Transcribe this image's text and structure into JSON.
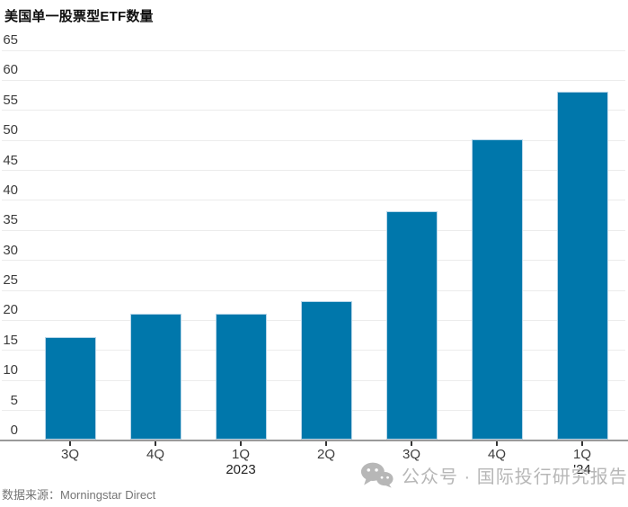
{
  "title": "美国单一股票型ETF数量",
  "source": "数据来源：Morningstar Direct",
  "watermark": {
    "icon": "wechat-icon",
    "text": "公众号 · 国际投行研究报告",
    "color": "#b7b7b7"
  },
  "chart_data": {
    "type": "bar",
    "title": "美国单一股票型ETF数量",
    "categories": [
      "3Q",
      "4Q",
      "1Q",
      "2Q",
      "3Q",
      "4Q",
      "1Q"
    ],
    "year_labels": [
      "",
      "",
      "2023",
      "",
      "",
      "",
      "'24"
    ],
    "values": [
      17,
      21,
      21,
      23,
      38,
      50,
      58
    ],
    "xlabel": "",
    "ylabel": "",
    "ylim": [
      0,
      65
    ],
    "yticks": [
      0,
      5,
      10,
      15,
      20,
      25,
      30,
      35,
      40,
      45,
      50,
      55,
      60,
      65
    ],
    "grid": true,
    "legend": false,
    "bar_color": "#0077ab",
    "gridline_color": "#ececec",
    "axis_color": "#9a9a9a",
    "label_color": "#3d3d3d"
  }
}
